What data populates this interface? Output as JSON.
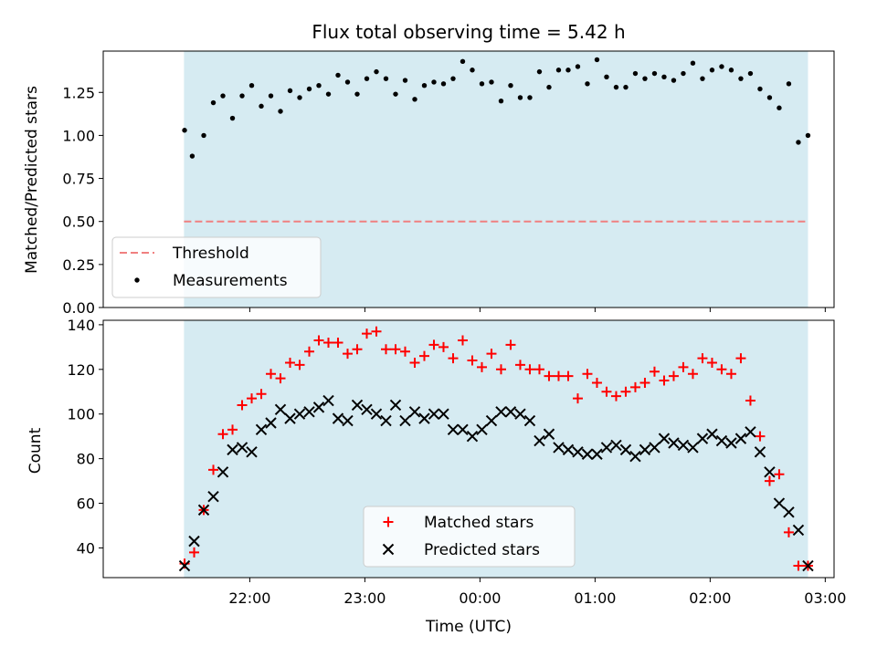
{
  "chart_data": {
    "title": "Flux total observing time = 5.42 h",
    "xlabel": "Time (UTC)",
    "x_unit": "minutes after 21:00 UTC",
    "x_ticks": [
      {
        "x": 60,
        "label": "22:00"
      },
      {
        "x": 120,
        "label": "23:00"
      },
      {
        "x": 180,
        "label": "00:00"
      },
      {
        "x": 240,
        "label": "01:00"
      },
      {
        "x": 300,
        "label": "02:00"
      },
      {
        "x": 360,
        "label": "03:00"
      }
    ],
    "xlim": [
      -16.4,
      364.6
    ],
    "shaded_interval": {
      "start": 25.7,
      "end": 351.0,
      "color": "#add8e6",
      "opacity": 0.5
    },
    "panels": [
      {
        "type": "scatter",
        "ylabel": "Matched/Predicted stars",
        "ylim": [
          0,
          1.49
        ],
        "yticks": [
          "0.00",
          "0.25",
          "0.50",
          "0.75",
          "1.00",
          "1.25"
        ],
        "threshold": {
          "name": "Threshold",
          "value": 0.5,
          "color": "#f08080"
        },
        "series": [
          {
            "name": "Measurements",
            "marker": "dot",
            "color": "#000000",
            "x": [
              26,
              30,
              36,
              41,
              46,
              51,
              56,
              61,
              66,
              71,
              76,
              81,
              86,
              91,
              96,
              101,
              106,
              111,
              116,
              121,
              126,
              131,
              136,
              141,
              146,
              151,
              156,
              161,
              166,
              171,
              176,
              181,
              186,
              191,
              196,
              201,
              206,
              211,
              216,
              221,
              226,
              231,
              236,
              241,
              246,
              251,
              256,
              261,
              266,
              271,
              276,
              281,
              286,
              291,
              296,
              301,
              306,
              311,
              316,
              321,
              326,
              331,
              336,
              341,
              346,
              351
            ],
            "y": [
              1.03,
              0.88,
              1.0,
              1.19,
              1.23,
              1.1,
              1.23,
              1.29,
              1.17,
              1.23,
              1.14,
              1.26,
              1.22,
              1.27,
              1.29,
              1.24,
              1.35,
              1.31,
              1.24,
              1.33,
              1.37,
              1.33,
              1.24,
              1.32,
              1.21,
              1.29,
              1.31,
              1.3,
              1.33,
              1.43,
              1.38,
              1.3,
              1.31,
              1.2,
              1.29,
              1.22,
              1.22,
              1.37,
              1.28,
              1.38,
              1.38,
              1.4,
              1.3,
              1.44,
              1.34,
              1.28,
              1.28,
              1.36,
              1.33,
              1.36,
              1.34,
              1.32,
              1.36,
              1.42,
              1.33,
              1.38,
              1.4,
              1.38,
              1.33,
              1.36,
              1.27,
              1.22,
              1.16,
              1.3,
              0.96,
              1.0
            ]
          }
        ]
      },
      {
        "type": "scatter",
        "ylabel": "Count",
        "ylim": [
          26.7,
          142
        ],
        "yticks": [
          "40",
          "60",
          "80",
          "100",
          "120",
          "140"
        ],
        "series": [
          {
            "name": "Matched stars",
            "marker": "plus",
            "color": "#ff0000",
            "x": [
              26,
              31,
              36,
              41,
              46,
              51,
              56,
              61,
              66,
              71,
              76,
              81,
              86,
              91,
              96,
              101,
              106,
              111,
              116,
              121,
              126,
              131,
              136,
              141,
              146,
              151,
              156,
              161,
              166,
              171,
              176,
              181,
              186,
              191,
              196,
              201,
              206,
              211,
              216,
              221,
              226,
              231,
              236,
              241,
              246,
              251,
              256,
              261,
              266,
              271,
              276,
              281,
              286,
              291,
              296,
              301,
              306,
              311,
              316,
              321,
              326,
              331,
              336,
              341,
              346,
              351
            ],
            "y": [
              33,
              38,
              57,
              75,
              91,
              93,
              104,
              107,
              109,
              118,
              116,
              123,
              122,
              128,
              133,
              132,
              132,
              127,
              129,
              136,
              137,
              129,
              129,
              128,
              123,
              126,
              131,
              130,
              125,
              133,
              124,
              121,
              127,
              120,
              131,
              122,
              120,
              120,
              117,
              117,
              117,
              107,
              118,
              114,
              110,
              108,
              110,
              112,
              114,
              119,
              115,
              117,
              121,
              118,
              125,
              123,
              120,
              118,
              125,
              106,
              90,
              70,
              73,
              47,
              32,
              32
            ]
          },
          {
            "name": "Predicted stars",
            "marker": "cross",
            "color": "#000000",
            "x": [
              26,
              31,
              36,
              41,
              46,
              51,
              56,
              61,
              66,
              71,
              76,
              81,
              86,
              91,
              96,
              101,
              106,
              111,
              116,
              121,
              126,
              131,
              136,
              141,
              146,
              151,
              156,
              161,
              166,
              171,
              176,
              181,
              186,
              191,
              196,
              201,
              206,
              211,
              216,
              221,
              226,
              231,
              236,
              241,
              246,
              251,
              256,
              261,
              266,
              271,
              276,
              281,
              286,
              291,
              296,
              301,
              306,
              311,
              316,
              321,
              326,
              331,
              336,
              341,
              346,
              351
            ],
            "y": [
              32,
              43,
              57,
              63,
              74,
              84,
              85,
              83,
              93,
              96,
              102,
              98,
              100,
              101,
              103,
              106,
              98,
              97,
              104,
              102,
              100,
              97,
              104,
              97,
              101,
              98,
              100,
              100,
              93,
              93,
              90,
              93,
              97,
              101,
              101,
              100,
              97,
              88,
              91,
              85,
              84,
              83,
              82,
              82,
              85,
              86,
              84,
              81,
              84,
              85,
              89,
              87,
              86,
              85,
              89,
              91,
              88,
              87,
              89,
              92,
              83,
              74,
              60,
              56,
              48,
              32
            ]
          }
        ]
      }
    ],
    "legends": [
      {
        "panel": 0,
        "placement": "lower-left",
        "entries": [
          "Threshold",
          "Measurements"
        ]
      },
      {
        "panel": 1,
        "placement": "lower-center",
        "entries": [
          "Matched stars",
          "Predicted stars"
        ]
      }
    ]
  }
}
